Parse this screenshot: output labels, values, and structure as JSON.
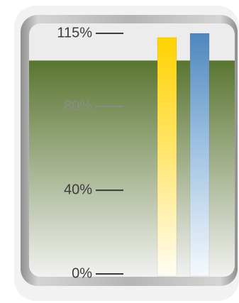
{
  "chart_data": {
    "type": "bar",
    "title": "",
    "xlabel": "",
    "ylabel": "",
    "ylim": [
      0,
      115
    ],
    "grid": false,
    "y_ticks": [
      {
        "value": 115,
        "label": "115%",
        "on_fill": false
      },
      {
        "value": 80,
        "label": "80%",
        "on_fill": true
      },
      {
        "value": 40,
        "label": "40%",
        "on_fill": false
      },
      {
        "value": 0,
        "label": "0%",
        "on_fill": false
      }
    ],
    "background_fill_level": 102,
    "series": [
      {
        "value": 113,
        "color": "#ffd200"
      },
      {
        "value": 115,
        "color": "#4f87bd"
      }
    ]
  },
  "colors": {
    "frame_outer": "#f1f1f1",
    "frame_ring": "#a9a9a9",
    "panel": "#ececec",
    "fill_top": "#5a7530",
    "fill_bottom": "#f4f4f4",
    "tick_text": "#3c3c3c",
    "tick_text_on_fill": "#8c8c8c"
  }
}
